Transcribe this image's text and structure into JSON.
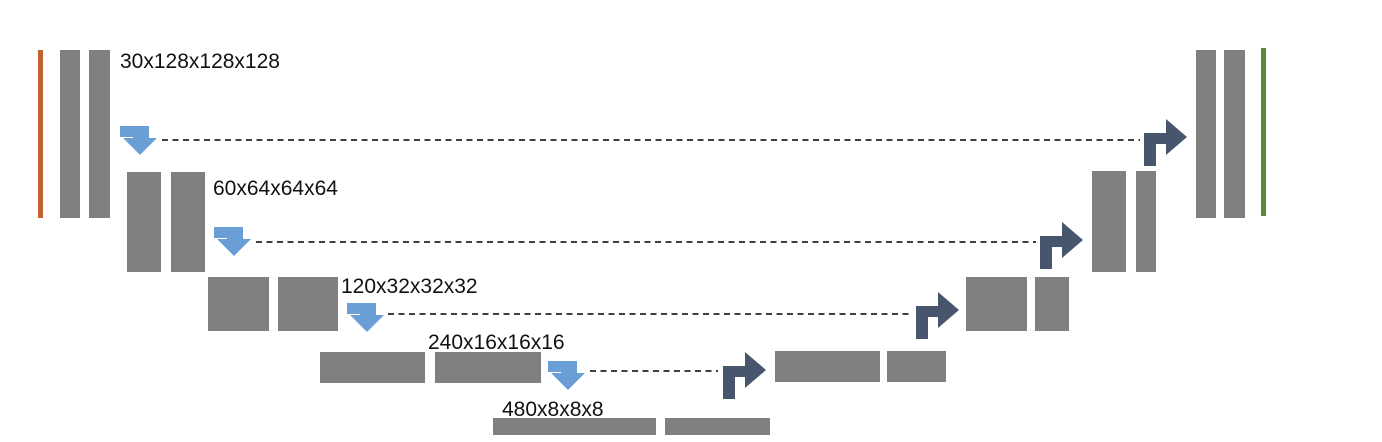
{
  "colors": {
    "block": "#808080",
    "input_bar": "#c0622b",
    "output_bar": "#5a8a40",
    "downsample_arrow": "#6a9fd5",
    "upsample_arrow": "#47566d",
    "skip_line": "#000000"
  },
  "levels": [
    {
      "label": "30x128x128x128"
    },
    {
      "label": "60x64x64x64"
    },
    {
      "label": "120x32x32x32"
    },
    {
      "label": "240x16x16x16"
    },
    {
      "label": "480x8x8x8"
    }
  ],
  "icons": {
    "downsample": "bent-down-arrow-icon",
    "upsample": "bent-up-right-arrow-icon"
  }
}
